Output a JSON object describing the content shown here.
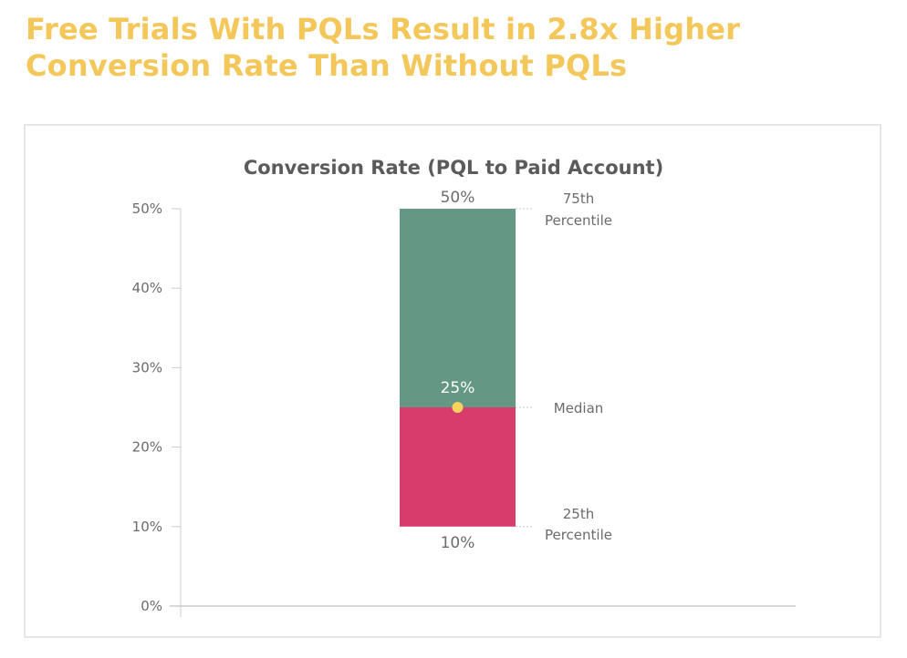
{
  "headline": {
    "line1": "Free Trials With PQLs Result in 2.8x Higher",
    "line2": "Conversion Rate Than Without PQLs"
  },
  "colors": {
    "headline": "#f3c75a",
    "upper_box": "#649885",
    "lower_box": "#d83c6d",
    "median_marker": "#f5d35c",
    "axis": "#cccccc",
    "text": "#6b6b6b"
  },
  "chart_data": {
    "type": "bar",
    "title": "Conversion Rate (PQL to Paid Account)",
    "xlabel": "",
    "ylabel": "",
    "ylim": [
      0,
      50
    ],
    "y_ticks": [
      "0%",
      "10%",
      "20%",
      "30%",
      "40%",
      "50%"
    ],
    "y_tick_values": [
      0,
      10,
      20,
      30,
      40,
      50
    ],
    "grid": false,
    "stats": {
      "p25": 10,
      "median": 25,
      "p75": 50
    },
    "data_labels": {
      "p75": "50%",
      "median": "25%",
      "p25": "10%"
    },
    "annotations": {
      "p75": [
        "75th",
        "Percentile"
      ],
      "median": [
        "Median"
      ],
      "p25": [
        "25th",
        "Percentile"
      ]
    }
  }
}
